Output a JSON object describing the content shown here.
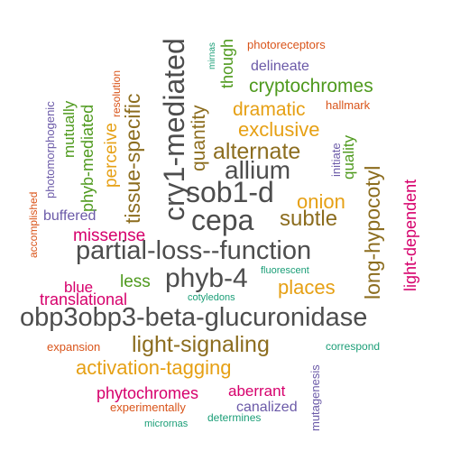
{
  "palette": {
    "dark_gray": "#4d4d4d",
    "brown": "#8c6d1f",
    "gold": "#e6a014",
    "green": "#4f9a1e",
    "magenta": "#d6006c",
    "purple": "#6b5aa8",
    "teal": "#1b9e77",
    "orange": "#d9541a"
  },
  "words": [
    {
      "id": "obp3obp3-beta-glucuronidase",
      "text": "obp3obp3-beta-glucuronidase",
      "color": "#4d4d4d",
      "vertical": false
    },
    {
      "id": "partial-loss--function",
      "text": "partial-loss--function",
      "color": "#4d4d4d",
      "vertical": false
    },
    {
      "id": "cry1-mediated",
      "text": "cry1-mediated",
      "color": "#4d4d4d",
      "vertical": true
    },
    {
      "id": "sob1-d",
      "text": "sob1-d",
      "color": "#4d4d4d",
      "vertical": false
    },
    {
      "id": "cepa",
      "text": "cepa",
      "color": "#4d4d4d",
      "vertical": false
    },
    {
      "id": "phyb-4",
      "text": "phyb-4",
      "color": "#4d4d4d",
      "vertical": false
    },
    {
      "id": "allium",
      "text": "allium",
      "color": "#4d4d4d",
      "vertical": false
    },
    {
      "id": "long-hypocotyl",
      "text": "long-hypocotyl",
      "color": "#8c6d1f",
      "vertical": true
    },
    {
      "id": "tissue-specific",
      "text": "tissue-specific",
      "color": "#8c6d1f",
      "vertical": true
    },
    {
      "id": "alternate",
      "text": "alternate",
      "color": "#8c6d1f",
      "vertical": false
    },
    {
      "id": "light-signaling",
      "text": "light-signaling",
      "color": "#8c6d1f",
      "vertical": false
    },
    {
      "id": "subtle",
      "text": "subtle",
      "color": "#8c6d1f",
      "vertical": false
    },
    {
      "id": "quantity",
      "text": "quantity",
      "color": "#8c6d1f",
      "vertical": true
    },
    {
      "id": "activation-tagging",
      "text": "activation-tagging",
      "color": "#e6a014",
      "vertical": false
    },
    {
      "id": "onion",
      "text": "onion",
      "color": "#e6a014",
      "vertical": false
    },
    {
      "id": "places",
      "text": "places",
      "color": "#e6a014",
      "vertical": false
    },
    {
      "id": "exclusive",
      "text": "exclusive",
      "color": "#e6a014",
      "vertical": false
    },
    {
      "id": "dramatic",
      "text": "dramatic",
      "color": "#e6a014",
      "vertical": false
    },
    {
      "id": "perceive",
      "text": "perceive",
      "color": "#e6a014",
      "vertical": true
    },
    {
      "id": "cryptochromes",
      "text": "cryptochromes",
      "color": "#4f9a1e",
      "vertical": false
    },
    {
      "id": "phyb-mediated",
      "text": "phyb-mediated",
      "color": "#4f9a1e",
      "vertical": true
    },
    {
      "id": "mutually",
      "text": "mutually",
      "color": "#4f9a1e",
      "vertical": true
    },
    {
      "id": "though",
      "text": "though",
      "color": "#4f9a1e",
      "vertical": true
    },
    {
      "id": "quality",
      "text": "quality",
      "color": "#4f9a1e",
      "vertical": true
    },
    {
      "id": "less",
      "text": "less",
      "color": "#4f9a1e",
      "vertical": false
    },
    {
      "id": "light-dependent",
      "text": "light-dependent",
      "color": "#d6006c",
      "vertical": true
    },
    {
      "id": "missense",
      "text": "missense",
      "color": "#d6006c",
      "vertical": false
    },
    {
      "id": "translational",
      "text": "translational",
      "color": "#d6006c",
      "vertical": false
    },
    {
      "id": "blue",
      "text": "blue",
      "color": "#d6006c",
      "vertical": false
    },
    {
      "id": "phytochromes",
      "text": "phytochromes",
      "color": "#d6006c",
      "vertical": false
    },
    {
      "id": "aberrant",
      "text": "aberrant",
      "color": "#d6006c",
      "vertical": false
    },
    {
      "id": "delineate",
      "text": "delineate",
      "color": "#6b5aa8",
      "vertical": false
    },
    {
      "id": "buffered",
      "text": "buffered",
      "color": "#6b5aa8",
      "vertical": false
    },
    {
      "id": "canalized",
      "text": "canalized",
      "color": "#6b5aa8",
      "vertical": false
    },
    {
      "id": "photomorphogenic",
      "text": "photomorphogenic",
      "color": "#6b5aa8",
      "vertical": true
    },
    {
      "id": "initiate",
      "text": "initiate",
      "color": "#6b5aa8",
      "vertical": true
    },
    {
      "id": "mutagenesis",
      "text": "mutagenesis",
      "color": "#6b5aa8",
      "vertical": true
    },
    {
      "id": "fluorescent",
      "text": "fluorescent",
      "color": "#1b9e77",
      "vertical": false
    },
    {
      "id": "cotyledons",
      "text": "cotyledons",
      "color": "#1b9e77",
      "vertical": false
    },
    {
      "id": "correspond",
      "text": "correspond",
      "color": "#1b9e77",
      "vertical": false
    },
    {
      "id": "determines",
      "text": "determines",
      "color": "#1b9e77",
      "vertical": false
    },
    {
      "id": "micrornas",
      "text": "micrornas",
      "color": "#1b9e77",
      "vertical": false
    },
    {
      "id": "mirnas",
      "text": "mirnas",
      "color": "#1b9e77",
      "vertical": true
    },
    {
      "id": "photoreceptors",
      "text": "photoreceptors",
      "color": "#d9541a",
      "vertical": false
    },
    {
      "id": "hallmark",
      "text": "hallmark",
      "color": "#d9541a",
      "vertical": false
    },
    {
      "id": "resolution",
      "text": "resolution",
      "color": "#d9541a",
      "vertical": true
    },
    {
      "id": "accomplished",
      "text": "accomplished",
      "color": "#d9541a",
      "vertical": true
    },
    {
      "id": "expansion",
      "text": "expansion",
      "color": "#d9541a",
      "vertical": false
    },
    {
      "id": "experimentally",
      "text": "experimentally",
      "color": "#d9541a",
      "vertical": false
    }
  ]
}
